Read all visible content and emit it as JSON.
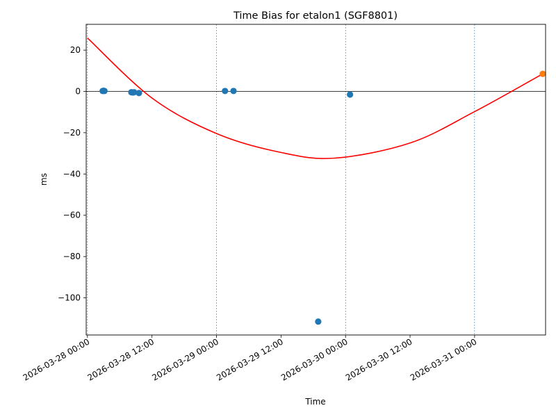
{
  "chart_data": {
    "type": "scatter",
    "title": "Time Bias for etalon1 (SGF8801)",
    "xlabel": "Time",
    "ylabel": "ms",
    "xlim": [
      "2026-03-27 23:46",
      "2026-03-31 13:12"
    ],
    "ylim": [
      -118,
      32.5
    ],
    "x_ticks": [
      {
        "t": "2026-03-28 00:00",
        "label": "2026-03-28 00:00"
      },
      {
        "t": "2026-03-28 12:00",
        "label": "2026-03-28 12:00"
      },
      {
        "t": "2026-03-29 00:00",
        "label": "2026-03-29 00:00"
      },
      {
        "t": "2026-03-29 12:00",
        "label": "2026-03-29 12:00"
      },
      {
        "t": "2026-03-30 00:00",
        "label": "2026-03-30 00:00"
      },
      {
        "t": "2026-03-30 12:00",
        "label": "2026-03-30 12:00"
      },
      {
        "t": "2026-03-31 00:00",
        "label": "2026-03-31 00:00"
      }
    ],
    "y_ticks": [
      20,
      0,
      -20,
      -40,
      -60,
      -80,
      -100
    ],
    "vlines": [
      "2026-03-28 00:00",
      "2026-03-29 00:00",
      "2026-03-30 00:00",
      "2026-03-31 00:00"
    ],
    "hline": 0,
    "series": [
      {
        "kind": "scatter",
        "color": "#1f77b4",
        "points": [
          {
            "x": "2026-03-28 02:50",
            "y": 0.2
          },
          {
            "x": "2026-03-28 03:00",
            "y": 0.3
          },
          {
            "x": "2026-03-28 03:10",
            "y": 0.2
          },
          {
            "x": "2026-03-28 08:10",
            "y": -0.4
          },
          {
            "x": "2026-03-28 08:25",
            "y": -0.5
          },
          {
            "x": "2026-03-28 08:40",
            "y": -0.4
          },
          {
            "x": "2026-03-28 09:35",
            "y": -0.8
          },
          {
            "x": "2026-03-29 01:35",
            "y": 0.2
          },
          {
            "x": "2026-03-29 03:10",
            "y": 0.2
          },
          {
            "x": "2026-03-29 18:55",
            "y": -111.5
          },
          {
            "x": "2026-03-30 00:50",
            "y": -1.5
          }
        ]
      },
      {
        "kind": "scatter",
        "color": "#ff7f0e",
        "points": [
          {
            "x": "2026-03-31 12:40",
            "y": 8.5
          }
        ]
      },
      {
        "kind": "line",
        "color": "#ff0000",
        "points": [
          {
            "x": "2026-03-28 00:00",
            "y": 25.9
          },
          {
            "x": "2026-03-28 12:00",
            "y": -3.2
          },
          {
            "x": "2026-03-29 00:00",
            "y": -20.4
          },
          {
            "x": "2026-03-29 12:00",
            "y": -29.6
          },
          {
            "x": "2026-03-29 22:00",
            "y": -32.3
          },
          {
            "x": "2026-03-30 12:00",
            "y": -25.0
          },
          {
            "x": "2026-03-31 00:00",
            "y": -9.8
          },
          {
            "x": "2026-03-31 12:40",
            "y": 8.5
          }
        ]
      }
    ]
  }
}
